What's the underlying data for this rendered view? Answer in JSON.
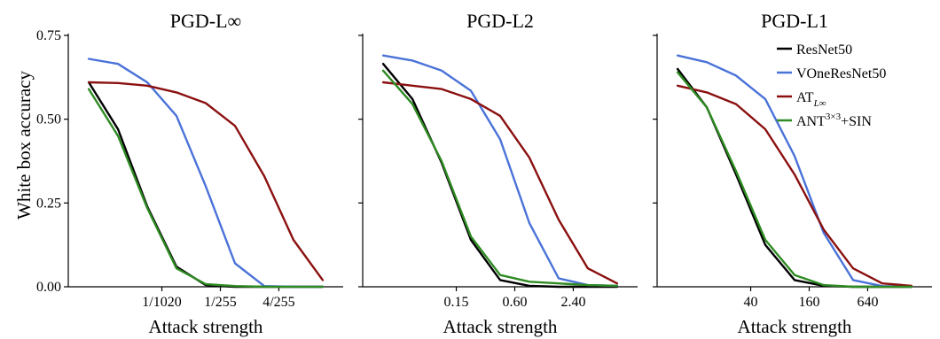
{
  "ylabel": "White box accuracy",
  "yticks": [
    {
      "value": 0.0,
      "label": "0.00"
    },
    {
      "value": 0.25,
      "label": "0.25"
    },
    {
      "value": 0.5,
      "label": "0.50"
    },
    {
      "value": 0.75,
      "label": "0.75"
    }
  ],
  "legend": [
    {
      "name": "ResNet50",
      "sup": "",
      "sub": "",
      "color": "#000000"
    },
    {
      "name": "VOneResNet50",
      "sup": "",
      "sub": "",
      "color": "#4a72d8"
    },
    {
      "name": "AT",
      "sup": "",
      "sub": "L∞",
      "color": "#8b1010"
    },
    {
      "name": "ANT",
      "sup": "3×3",
      "sub": "",
      "suffix": "+SIN",
      "color": "#2e8b22"
    }
  ],
  "chart_data": [
    {
      "type": "line",
      "title": "PGD-L∞",
      "xlabel": "Attack strength",
      "ylim": [
        0,
        0.75
      ],
      "x": [
        -1,
        0,
        1,
        2,
        3,
        4,
        5,
        6,
        7
      ],
      "xlim": [
        -1.7,
        7.7
      ],
      "xticks": [
        {
          "x": 1.5,
          "label": "1/1020"
        },
        {
          "x": 3.5,
          "label": "1/255"
        },
        {
          "x": 5.5,
          "label": "4/255"
        }
      ],
      "series": [
        {
          "name": "ResNet50",
          "color": "#000000",
          "values": [
            0.61,
            0.47,
            0.24,
            0.06,
            0.005,
            0.0,
            0.0,
            0.0,
            0.0
          ]
        },
        {
          "name": "VOneResNet50",
          "color": "#4a72d8",
          "values": [
            0.68,
            0.665,
            0.61,
            0.51,
            0.3,
            0.07,
            0.002,
            0.0,
            0.0
          ]
        },
        {
          "name": "AT L∞",
          "color": "#8b1010",
          "values": [
            0.61,
            0.608,
            0.6,
            0.58,
            0.548,
            0.48,
            0.33,
            0.14,
            0.02
          ]
        },
        {
          "name": "ANT 3×3+SIN",
          "color": "#2e8b22",
          "values": [
            0.59,
            0.45,
            0.235,
            0.055,
            0.008,
            0.002,
            0.0,
            0.0,
            0.0
          ]
        }
      ]
    },
    {
      "type": "line",
      "title": "PGD-L2",
      "xlabel": "Attack strength",
      "ylim": [
        0,
        0.75
      ],
      "x": [
        -1,
        0,
        1,
        2,
        3,
        4,
        5,
        6,
        7
      ],
      "xlim": [
        -1.7,
        7.7
      ],
      "xticks": [
        {
          "x": 1.5,
          "label": "0.15"
        },
        {
          "x": 3.5,
          "label": "0.60"
        },
        {
          "x": 5.5,
          "label": "2.40"
        }
      ],
      "series": [
        {
          "name": "ResNet50",
          "color": "#000000",
          "values": [
            0.665,
            0.56,
            0.37,
            0.14,
            0.02,
            0.003,
            0.0,
            0.0,
            0.0
          ]
        },
        {
          "name": "VOneResNet50",
          "color": "#4a72d8",
          "values": [
            0.69,
            0.675,
            0.645,
            0.585,
            0.44,
            0.19,
            0.025,
            0.005,
            0.003
          ]
        },
        {
          "name": "AT L∞",
          "color": "#8b1010",
          "values": [
            0.61,
            0.6,
            0.59,
            0.56,
            0.51,
            0.385,
            0.2,
            0.055,
            0.01
          ]
        },
        {
          "name": "ANT 3×3+SIN",
          "color": "#2e8b22",
          "values": [
            0.645,
            0.545,
            0.375,
            0.15,
            0.035,
            0.015,
            0.01,
            0.005,
            0.003
          ]
        }
      ]
    },
    {
      "type": "line",
      "title": "PGD-L1",
      "xlabel": "Attack strength",
      "ylim": [
        0,
        0.75
      ],
      "x": [
        -1,
        0,
        1,
        2,
        3,
        4,
        5,
        6,
        7
      ],
      "xlim": [
        -1.7,
        7.7
      ],
      "xticks": [
        {
          "x": 1.5,
          "label": "40"
        },
        {
          "x": 3.5,
          "label": "160"
        },
        {
          "x": 5.5,
          "label": "640"
        }
      ],
      "series": [
        {
          "name": "ResNet50",
          "color": "#000000",
          "values": [
            0.65,
            0.535,
            0.335,
            0.125,
            0.02,
            0.003,
            0.0,
            0.0,
            0.0
          ]
        },
        {
          "name": "VOneResNet50",
          "color": "#4a72d8",
          "values": [
            0.69,
            0.67,
            0.63,
            0.56,
            0.39,
            0.16,
            0.02,
            0.002,
            0.0
          ]
        },
        {
          "name": "AT L∞",
          "color": "#8b1010",
          "values": [
            0.6,
            0.58,
            0.545,
            0.47,
            0.335,
            0.17,
            0.055,
            0.01,
            0.003
          ]
        },
        {
          "name": "ANT 3×3+SIN",
          "color": "#2e8b22",
          "values": [
            0.64,
            0.535,
            0.345,
            0.14,
            0.035,
            0.005,
            0.0,
            0.0,
            0.0
          ]
        }
      ]
    }
  ]
}
